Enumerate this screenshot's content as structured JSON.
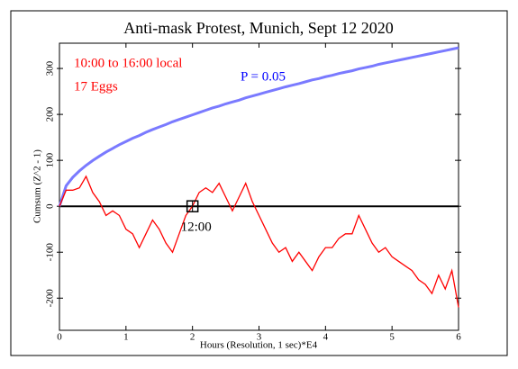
{
  "chart_data": {
    "type": "line",
    "title": "Anti-mask Protest, Munich, Sept 12 2020",
    "xlabel": "Hours (Resolution, 1 sec)*E4",
    "ylabel": "Cumsum (Z^2 - 1)",
    "annotations": [
      "10:00 to 16:00 local",
      "17 Eggs",
      "P = 0.05"
    ],
    "marker": {
      "text": "12:00",
      "x": 2,
      "y": 0
    },
    "baseline": 0,
    "xlim": [
      0,
      6
    ],
    "xticks": [
      0,
      1,
      2,
      3,
      4,
      5,
      6
    ],
    "ylim": [
      -270,
      355
    ],
    "yticks": [
      -200,
      -100,
      0,
      100,
      200,
      300
    ],
    "x": [
      0,
      0.1,
      0.2,
      0.3,
      0.4,
      0.5,
      0.6,
      0.7,
      0.8,
      0.9,
      1,
      1.1,
      1.2,
      1.3,
      1.4,
      1.5,
      1.6,
      1.7,
      1.8,
      1.9,
      2,
      2.1,
      2.2,
      2.3,
      2.4,
      2.5,
      2.6,
      2.7,
      2.8,
      2.9,
      3,
      3.1,
      3.2,
      3.3,
      3.4,
      3.5,
      3.6,
      3.7,
      3.8,
      3.9,
      4,
      4.1,
      4.2,
      4.3,
      4.4,
      4.5,
      4.6,
      4.7,
      4.8,
      4.9,
      5,
      5.1,
      5.2,
      5.3,
      5.4,
      5.5,
      5.6,
      5.7,
      5.8,
      5.9,
      6
    ],
    "series": [
      {
        "color": "#7a7aff",
        "values": [
          0,
          44.5,
          63,
          77,
          89,
          99.6,
          109,
          118,
          126,
          134,
          141,
          148,
          154,
          161,
          167,
          172.5,
          178,
          184,
          189,
          194,
          199,
          204,
          209,
          214,
          218,
          223,
          227,
          231,
          236,
          240,
          244,
          248,
          252,
          256,
          260,
          263.5,
          267,
          271,
          275,
          278,
          282,
          285,
          289,
          292,
          295,
          299,
          302,
          305,
          309,
          312,
          315,
          318,
          321,
          324,
          327,
          330,
          333,
          336,
          339,
          342,
          345
        ]
      },
      {
        "color": "#ff0000",
        "values": [
          0,
          35,
          35,
          40,
          65,
          30,
          10,
          -20,
          -10,
          -20,
          -50,
          -60,
          -90,
          -60,
          -30,
          -50,
          -80,
          -100,
          -60,
          -20,
          0,
          30,
          40,
          30,
          50,
          20,
          -10,
          20,
          50,
          10,
          -20,
          -50,
          -80,
          -100,
          -90,
          -120,
          -100,
          -120,
          -140,
          -110,
          -90,
          -90,
          -70,
          -60,
          -60,
          -20,
          -50,
          -80,
          -100,
          -90,
          -110,
          -120,
          -130,
          -140,
          -160,
          -170,
          -190,
          -150,
          -180,
          -140,
          -220
        ]
      }
    ]
  }
}
